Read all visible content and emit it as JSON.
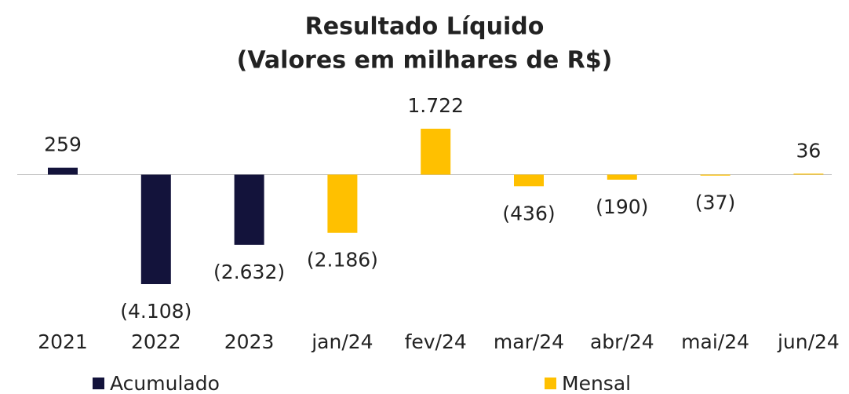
{
  "chart_data": {
    "type": "bar",
    "title": [
      "Resultado Líquido",
      "(Valores em milhares de R$)"
    ],
    "categories": [
      "2021",
      "2022",
      "2023",
      "jan/24",
      "fev/24",
      "mar/24",
      "abr/24",
      "mai/24",
      "jun/24"
    ],
    "series": [
      {
        "name": "Acumulado",
        "color": "#13133b",
        "values": [
          259,
          -4108,
          -2632,
          null,
          null,
          null,
          null,
          null,
          null
        ],
        "value_labels": [
          "259",
          "(4.108)",
          "(2.632)",
          null,
          null,
          null,
          null,
          null,
          null
        ]
      },
      {
        "name": "Mensal",
        "color": "#ffc000",
        "values": [
          null,
          null,
          null,
          -2186,
          1722,
          -436,
          -190,
          -37,
          36
        ],
        "value_labels": [
          null,
          null,
          null,
          "(2.186)",
          "1.722",
          "(436)",
          "(190)",
          "(37)",
          "36"
        ]
      }
    ]
  }
}
